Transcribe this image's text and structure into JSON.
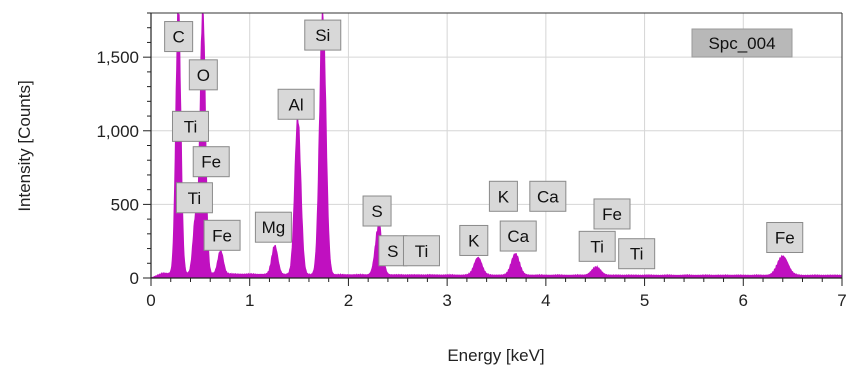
{
  "chart_data": {
    "type": "area",
    "title": "",
    "xlabel": "Energy [keV]",
    "ylabel": "Intensity [Counts]",
    "xlim": [
      0,
      7
    ],
    "ylim": [
      0,
      1800
    ],
    "x_ticks": [
      0,
      1,
      2,
      3,
      4,
      5,
      6,
      7
    ],
    "x_tick_labels": [
      "0",
      "1",
      "2",
      "3",
      "4",
      "5",
      "6",
      "7"
    ],
    "y_ticks": [
      0,
      500,
      1000,
      1500
    ],
    "y_tick_labels": [
      "0",
      "500",
      "1,000",
      "1,500"
    ],
    "grid": true,
    "legend": "none",
    "spectrum_label": "Spc_004",
    "series": [
      {
        "color": "#c010c0",
        "background_counts": 25,
        "peaks": [
          {
            "element": "C",
            "energy": 0.277,
            "counts": 1800
          },
          {
            "element": "O",
            "energy": 0.525,
            "counts": 1800
          },
          {
            "element": "Ti",
            "energy": 0.452,
            "counts": 380
          },
          {
            "element": "Fe",
            "energy": 0.705,
            "counts": 160
          },
          {
            "element": "Mg",
            "energy": 1.254,
            "counts": 195
          },
          {
            "element": "Al",
            "energy": 1.487,
            "counts": 1060
          },
          {
            "element": "Si",
            "energy": 1.74,
            "counts": 1800
          },
          {
            "element": "S",
            "energy": 2.308,
            "counts": 340
          },
          {
            "element": "K",
            "energy": 3.313,
            "counts": 120
          },
          {
            "element": "Ca",
            "energy": 3.691,
            "counts": 145
          },
          {
            "element": "Ti",
            "energy": 4.51,
            "counts": 55
          },
          {
            "element": "Fe",
            "energy": 6.4,
            "counts": 130
          }
        ]
      }
    ],
    "annotations": [
      {
        "text": "C",
        "x": 0.28,
        "y": 1640
      },
      {
        "text": "O",
        "x": 0.53,
        "y": 1380
      },
      {
        "text": "Ti",
        "x": 0.4,
        "y": 1030
      },
      {
        "text": "Fe",
        "x": 0.61,
        "y": 790
      },
      {
        "text": "Ti",
        "x": 0.44,
        "y": 545
      },
      {
        "text": "Fe",
        "x": 0.72,
        "y": 290
      },
      {
        "text": "Mg",
        "x": 1.24,
        "y": 345
      },
      {
        "text": "Al",
        "x": 1.47,
        "y": 1180
      },
      {
        "text": "Si",
        "x": 1.74,
        "y": 1650
      },
      {
        "text": "S",
        "x": 2.29,
        "y": 455
      },
      {
        "text": "S",
        "x": 2.45,
        "y": 185
      },
      {
        "text": "Ti",
        "x": 2.74,
        "y": 185
      },
      {
        "text": "K",
        "x": 3.27,
        "y": 255
      },
      {
        "text": "Ca",
        "x": 3.72,
        "y": 285
      },
      {
        "text": "K",
        "x": 3.57,
        "y": 555
      },
      {
        "text": "Ca",
        "x": 4.02,
        "y": 555
      },
      {
        "text": "Ti",
        "x": 4.52,
        "y": 215
      },
      {
        "text": "Fe",
        "x": 4.67,
        "y": 435
      },
      {
        "text": "Ti",
        "x": 4.92,
        "y": 165
      },
      {
        "text": "Fe",
        "x": 6.42,
        "y": 275
      }
    ]
  }
}
